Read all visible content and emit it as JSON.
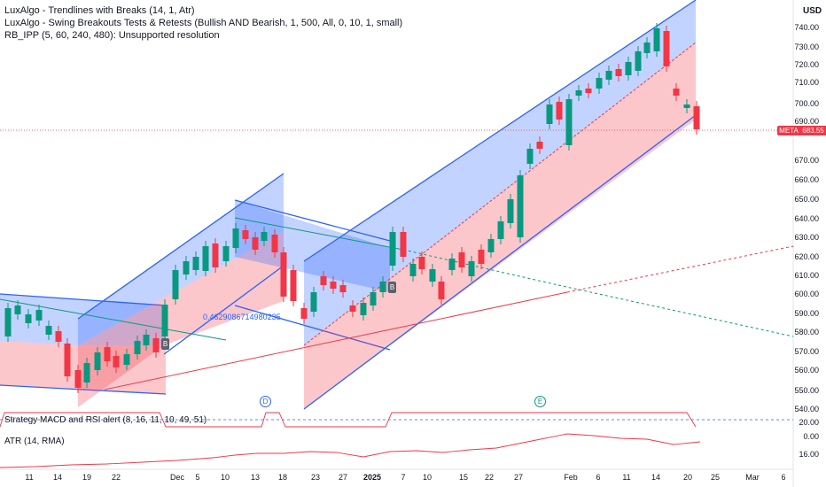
{
  "legends": {
    "line1": "LuxAlgo - Trendlines with Breaks (14, 1, Atr)",
    "line2": "LuxAlgo - Swing Breakouts Tests & Retests (Bullish AND Bearish, 1, 500, All, 0, 10, 1, small)",
    "line3": "RB_IPP (5, 60, 240, 480): Unsupported resolution",
    "strategy": "Strategy MACD and RSI alert (8, 16, 11, 10, 49, 51)",
    "atr": "ATR (14, RMA)"
  },
  "currency": "USD",
  "price_axis": [
    "740.00",
    "730.00",
    "720.00",
    "710.00",
    "700.00",
    "690.00",
    "670.00",
    "660.00",
    "650.00",
    "640.00",
    "630.00",
    "620.00",
    "610.00",
    "600.00",
    "590.00",
    "580.00",
    "570.00",
    "560.00",
    "550.00",
    "540.00"
  ],
  "indicator_axis": [
    "20.00",
    "0.00",
    "16.00"
  ],
  "time_axis": [
    {
      "label": "11",
      "bold": false
    },
    {
      "label": "14",
      "bold": false
    },
    {
      "label": "19",
      "bold": false
    },
    {
      "label": "22",
      "bold": false
    },
    {
      "label": "Dec",
      "bold": false
    },
    {
      "label": "5",
      "bold": false
    },
    {
      "label": "10",
      "bold": false
    },
    {
      "label": "13",
      "bold": false
    },
    {
      "label": "18",
      "bold": false
    },
    {
      "label": "23",
      "bold": false
    },
    {
      "label": "27",
      "bold": false
    },
    {
      "label": "2025",
      "bold": true
    },
    {
      "label": "7",
      "bold": false
    },
    {
      "label": "10",
      "bold": false
    },
    {
      "label": "15",
      "bold": false
    },
    {
      "label": "22",
      "bold": false
    },
    {
      "label": "27",
      "bold": false
    },
    {
      "label": "Feb",
      "bold": false
    },
    {
      "label": "6",
      "bold": false
    },
    {
      "label": "11",
      "bold": false
    },
    {
      "label": "14",
      "bold": false
    },
    {
      "label": "20",
      "bold": false
    },
    {
      "label": "25",
      "bold": false
    },
    {
      "label": "Mar",
      "bold": false
    },
    {
      "label": "6",
      "bold": false
    }
  ],
  "symbol_tag": "META",
  "last_price": "683.55",
  "annotation": "0.4629086714980235",
  "markers": {
    "d": "D",
    "e": "E",
    "b1": "B",
    "b2": "B"
  },
  "colors": {
    "up": "#089981",
    "down": "#f23645",
    "channel": "#2962ff",
    "price_line": "#f23645"
  }
}
